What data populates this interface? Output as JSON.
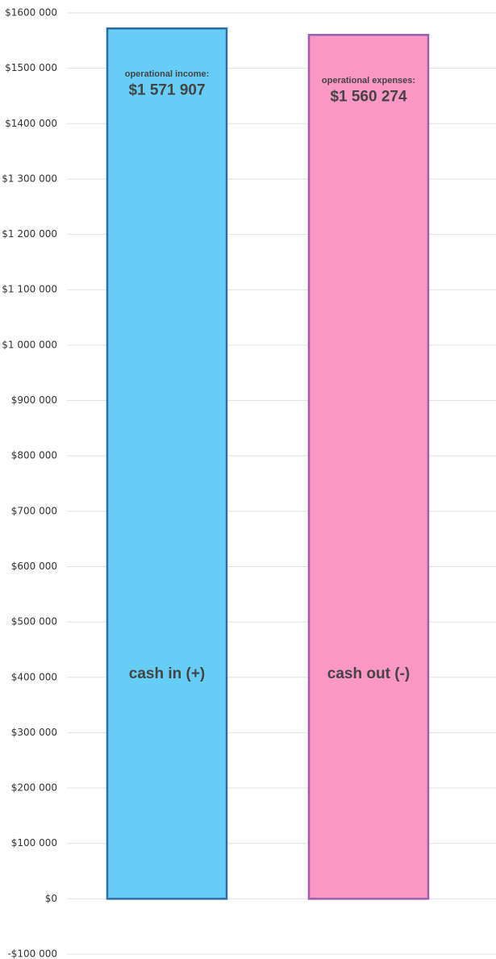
{
  "chart_data": {
    "type": "bar",
    "categories": [
      "cash in (+)",
      "cash out (-)"
    ],
    "values": [
      1571907,
      1560274
    ],
    "value_labels": [
      "$1 571 907",
      "$1 560 274"
    ],
    "annotations": [
      "operational income:",
      "operational expenses:"
    ],
    "colors": [
      "#66cdf7",
      "#fa97c4"
    ],
    "edge_colors": [
      "#2b6ea6",
      "#9a5fb0"
    ],
    "ylim": [
      -100000,
      1600000
    ],
    "yticks": [
      {
        "value": -100000,
        "label": "-$100 000"
      },
      {
        "value": 0,
        "label": "$0"
      },
      {
        "value": 100000,
        "label": "$100 000"
      },
      {
        "value": 200000,
        "label": "$200 000"
      },
      {
        "value": 300000,
        "label": "$300 000"
      },
      {
        "value": 400000,
        "label": "$400 000"
      },
      {
        "value": 500000,
        "label": "$500 000"
      },
      {
        "value": 600000,
        "label": "$600 000"
      },
      {
        "value": 700000,
        "label": "$700 000"
      },
      {
        "value": 800000,
        "label": "$800 000"
      },
      {
        "value": 900000,
        "label": "$900 000"
      },
      {
        "value": 1000000,
        "label": "$1 000 000"
      },
      {
        "value": 1100000,
        "label": "$1 100 000"
      },
      {
        "value": 1200000,
        "label": "$1 200 000"
      },
      {
        "value": 1300000,
        "label": "$1 300 000"
      },
      {
        "value": 1400000,
        "label": "$1400 000"
      },
      {
        "value": 1500000,
        "label": "$1500 000"
      },
      {
        "value": 1600000,
        "label": "$1600 000"
      }
    ],
    "grid": true
  }
}
